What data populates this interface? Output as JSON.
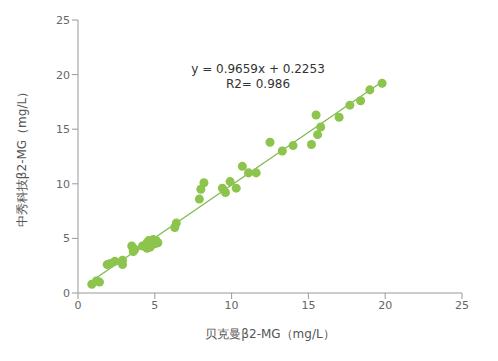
{
  "chart_data": {
    "type": "scatter",
    "xlabel": "贝克曼β2-MG（mg/L）",
    "ylabel": "中秀科技β2-MG（mg/L）",
    "annotations": [
      "y = 0.9659x + 0.2253",
      "R2= 0.986"
    ],
    "color": "#8cc44e",
    "x": [
      0.9,
      1.2,
      1.4,
      1.9,
      2.1,
      2.4,
      2.9,
      2.9,
      3.5,
      3.6,
      3.7,
      4.2,
      4.4,
      4.5,
      4.5,
      4.6,
      4.7,
      4.8,
      4.9,
      5.0,
      5.1,
      5.2,
      6.3,
      6.4,
      7.9,
      8.0,
      8.2,
      9.4,
      9.6,
      9.9,
      10.3,
      10.7,
      11.1,
      11.6,
      12.5,
      13.3,
      14.0,
      15.2,
      15.5,
      15.6,
      15.8,
      17.0,
      17.7,
      18.4,
      19.0,
      19.8
    ],
    "values": [
      0.8,
      1.1,
      1.0,
      2.6,
      2.7,
      2.9,
      2.6,
      3.0,
      4.3,
      3.8,
      4.0,
      4.3,
      4.4,
      4.6,
      4.1,
      4.8,
      4.2,
      4.6,
      4.9,
      4.5,
      4.8,
      4.6,
      6.0,
      6.4,
      8.6,
      9.5,
      10.1,
      9.6,
      9.2,
      10.2,
      9.6,
      11.6,
      11.0,
      11.0,
      13.8,
      13.0,
      13.5,
      13.6,
      16.3,
      14.5,
      15.2,
      16.1,
      17.2,
      17.6,
      18.6,
      19.2
    ],
    "fit": {
      "slope": 0.9659,
      "intercept": 0.2253,
      "x": [
        0.8,
        19.8
      ],
      "color": "#7cb84a"
    },
    "xlim": [
      0,
      25
    ],
    "ylim": [
      0,
      25
    ],
    "xticks": [
      0,
      5,
      10,
      15,
      20,
      25
    ],
    "yticks": [
      0,
      5,
      10,
      15,
      20,
      25
    ],
    "grid": false
  }
}
